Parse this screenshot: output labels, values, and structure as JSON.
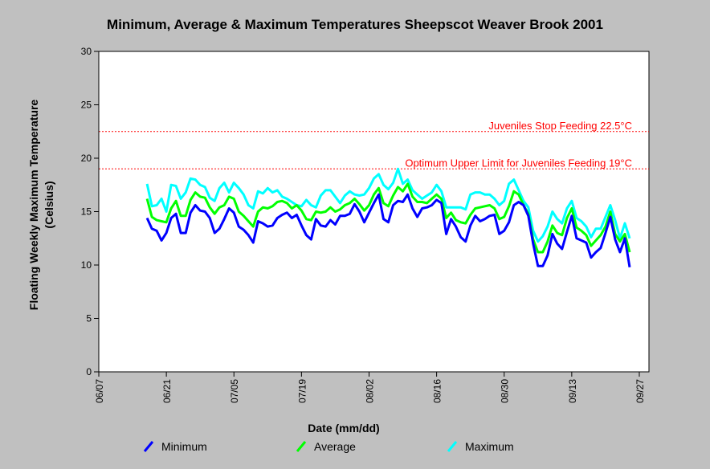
{
  "chart_data": {
    "type": "line",
    "title": "Minimum, Average & Maximum Temperatures Sheepscot Weaver Brook 2001",
    "xlabel": "Date (mm/dd)",
    "ylabel_line1": "Floating Weekly Maximum Temperature",
    "ylabel_line2": "(Celsius)",
    "ylim": [
      0,
      30
    ],
    "yticks": [
      "0",
      "5",
      "10",
      "15",
      "20",
      "25",
      "30"
    ],
    "xlim": [
      "06/07",
      "09/29"
    ],
    "xticks": [
      "06/07",
      "06/21",
      "07/05",
      "07/19",
      "08/02",
      "08/16",
      "08/30",
      "09/13",
      "09/27"
    ],
    "grid": false,
    "legend_position": "bottom",
    "reference_lines": [
      {
        "value": 22.5,
        "label": "Juveniles Stop Feeding 22.5°C",
        "color": "#ff0000"
      },
      {
        "value": 19,
        "label": "Optimum Upper Limit for Juveniles Feeding 19°C",
        "color": "#ff0000"
      }
    ],
    "x_start": "06/17",
    "x_step_days": 1,
    "series": [
      {
        "name": "Minimum",
        "color": "#0000ff",
        "values": [
          14.4,
          13.4,
          13.2,
          12.3,
          13.0,
          14.4,
          14.8,
          13.0,
          13.0,
          14.9,
          15.6,
          15.1,
          15.0,
          14.4,
          13.0,
          13.4,
          14.3,
          15.3,
          14.9,
          13.6,
          13.3,
          12.8,
          12.1,
          14.1,
          13.9,
          13.6,
          13.7,
          14.4,
          14.7,
          14.9,
          14.4,
          14.7,
          13.7,
          12.8,
          12.4,
          14.3,
          13.7,
          13.6,
          14.2,
          13.8,
          14.6,
          14.6,
          14.8,
          15.7,
          15.0,
          14.0,
          14.9,
          15.8,
          16.6,
          14.3,
          14.0,
          15.6,
          16.0,
          15.9,
          16.6,
          15.3,
          14.5,
          15.3,
          15.4,
          15.6,
          16.1,
          15.8,
          12.9,
          14.3,
          13.6,
          12.6,
          12.2,
          13.7,
          14.6,
          14.1,
          14.3,
          14.6,
          14.7,
          12.9,
          13.2,
          14.0,
          15.6,
          15.9,
          15.6,
          14.6,
          12.0,
          9.9,
          9.9,
          10.9,
          12.9,
          12.0,
          11.5,
          13.1,
          14.6,
          12.5,
          12.3,
          12.1,
          10.7,
          11.2,
          11.6,
          13.0,
          14.5,
          12.4,
          11.2,
          12.5,
          9.8
        ]
      },
      {
        "name": "Average",
        "color": "#00ff00",
        "values": [
          16.2,
          14.5,
          14.2,
          14.1,
          14.0,
          15.3,
          16.0,
          14.6,
          14.6,
          16.1,
          16.8,
          16.4,
          16.3,
          15.4,
          14.8,
          15.4,
          15.6,
          16.4,
          16.2,
          15.0,
          14.6,
          14.1,
          13.6,
          15.0,
          15.4,
          15.3,
          15.5,
          15.9,
          16.0,
          15.8,
          15.3,
          15.6,
          15.1,
          14.3,
          14.2,
          15.0,
          14.9,
          15.0,
          15.4,
          15.0,
          15.2,
          15.6,
          15.8,
          16.2,
          15.7,
          15.1,
          15.6,
          16.6,
          17.2,
          15.8,
          15.5,
          16.5,
          17.3,
          16.9,
          17.6,
          16.4,
          15.9,
          15.9,
          15.8,
          16.2,
          16.6,
          16.2,
          14.4,
          14.9,
          14.2,
          14.0,
          13.9,
          14.7,
          15.3,
          15.4,
          15.5,
          15.6,
          15.3,
          14.3,
          14.5,
          15.5,
          16.9,
          16.6,
          15.6,
          14.8,
          12.4,
          11.2,
          11.2,
          12.2,
          13.7,
          13.0,
          12.8,
          14.4,
          15.3,
          13.5,
          13.2,
          12.8,
          11.8,
          12.3,
          12.8,
          13.6,
          15.0,
          12.9,
          12.2,
          12.9,
          11.2
        ]
      },
      {
        "name": "Maximum",
        "color": "#00ffff",
        "values": [
          17.6,
          15.5,
          15.6,
          16.2,
          15.0,
          17.5,
          17.4,
          16.2,
          16.8,
          18.1,
          18.0,
          17.5,
          17.3,
          16.3,
          16.0,
          17.2,
          17.7,
          16.8,
          17.7,
          17.2,
          16.6,
          15.6,
          15.3,
          16.9,
          16.7,
          17.2,
          16.8,
          17.0,
          16.4,
          16.2,
          15.9,
          15.6,
          15.5,
          16.1,
          15.6,
          15.4,
          16.5,
          17.0,
          17.0,
          16.4,
          15.8,
          16.5,
          16.9,
          16.6,
          16.5,
          16.6,
          17.2,
          18.1,
          18.5,
          17.5,
          17.1,
          17.7,
          19.0,
          17.6,
          18.0,
          17.0,
          16.6,
          16.2,
          16.5,
          16.8,
          17.5,
          16.9,
          15.4,
          15.4,
          15.4,
          15.4,
          15.2,
          16.6,
          16.8,
          16.8,
          16.6,
          16.6,
          16.2,
          15.6,
          16.0,
          17.6,
          18.0,
          17.0,
          16.0,
          15.4,
          13.2,
          12.2,
          12.7,
          13.6,
          15.0,
          14.3,
          13.9,
          15.3,
          16.0,
          14.4,
          14.1,
          13.6,
          12.6,
          13.4,
          13.4,
          14.5,
          15.6,
          14.2,
          12.5,
          13.9,
          12.5
        ]
      }
    ]
  }
}
